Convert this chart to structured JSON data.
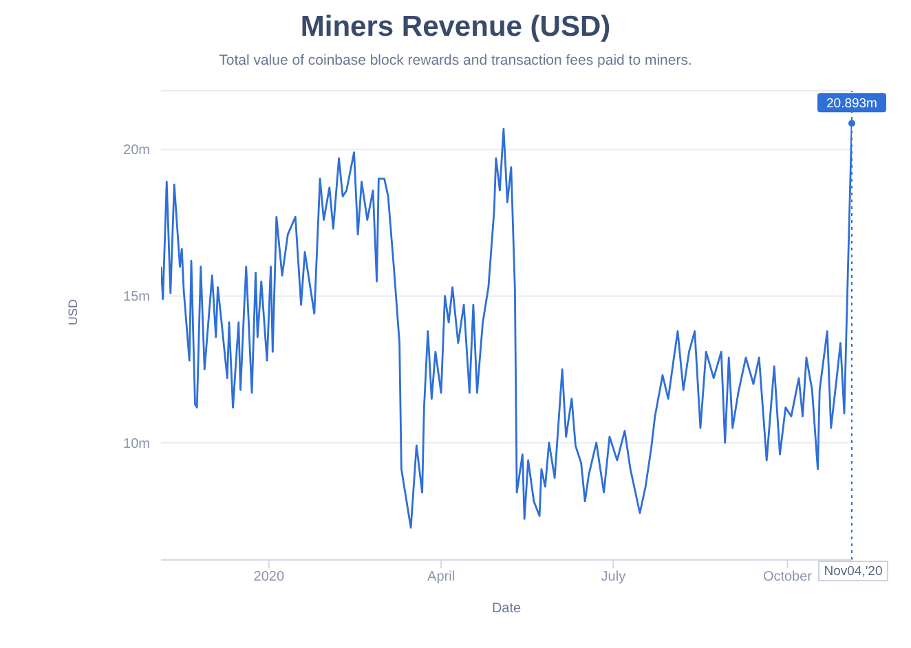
{
  "chart_data": {
    "type": "line",
    "title": "Miners Revenue (USD)",
    "subtitle": "Total value of coinbase block rewards and transaction fees paid to miners.",
    "xlabel": "Date",
    "ylabel": "USD",
    "x": [
      "2019-11-05",
      "2019-11-06",
      "2019-11-08",
      "2019-11-10",
      "2019-11-12",
      "2019-11-15",
      "2019-11-16",
      "2019-11-17",
      "2019-11-20",
      "2019-11-21",
      "2019-11-23",
      "2019-11-24",
      "2019-11-26",
      "2019-11-28",
      "2019-12-02",
      "2019-12-04",
      "2019-12-05",
      "2019-12-07",
      "2019-12-10",
      "2019-12-11",
      "2019-12-13",
      "2019-12-16",
      "2019-12-17",
      "2019-12-19",
      "2019-12-20",
      "2019-12-23",
      "2019-12-25",
      "2019-12-26",
      "2019-12-28",
      "2019-12-31",
      "2020-01-02",
      "2020-01-03",
      "2020-01-05",
      "2020-01-08",
      "2020-01-11",
      "2020-01-15",
      "2020-01-18",
      "2020-01-20",
      "2020-01-25",
      "2020-01-28",
      "2020-01-30",
      "2020-02-02",
      "2020-02-04",
      "2020-02-07",
      "2020-02-09",
      "2020-02-11",
      "2020-02-15",
      "2020-02-17",
      "2020-02-19",
      "2020-02-22",
      "2020-02-25",
      "2020-02-27",
      "2020-02-28",
      "2020-03-02",
      "2020-03-04",
      "2020-03-07",
      "2020-03-10",
      "2020-03-11",
      "2020-03-13",
      "2020-03-16",
      "2020-03-19",
      "2020-03-22",
      "2020-03-23",
      "2020-03-25",
      "2020-03-27",
      "2020-03-29",
      "2020-04-01",
      "2020-04-03",
      "2020-04-05",
      "2020-04-07",
      "2020-04-10",
      "2020-04-13",
      "2020-04-16",
      "2020-04-18",
      "2020-04-20",
      "2020-04-23",
      "2020-04-26",
      "2020-04-29",
      "2020-04-30",
      "2020-05-02",
      "2020-05-04",
      "2020-05-06",
      "2020-05-08",
      "2020-05-10",
      "2020-05-11",
      "2020-05-14",
      "2020-05-15",
      "2020-05-17",
      "2020-05-20",
      "2020-05-23",
      "2020-05-24",
      "2020-05-26",
      "2020-05-28",
      "2020-05-31",
      "2020-06-04",
      "2020-06-06",
      "2020-06-09",
      "2020-06-11",
      "2020-06-14",
      "2020-06-16",
      "2020-06-18",
      "2020-06-22",
      "2020-06-26",
      "2020-06-29",
      "2020-07-03",
      "2020-07-07",
      "2020-07-10",
      "2020-07-15",
      "2020-07-18",
      "2020-07-21",
      "2020-07-23",
      "2020-07-27",
      "2020-07-30",
      "2020-08-02",
      "2020-08-04",
      "2020-08-07",
      "2020-08-10",
      "2020-08-13",
      "2020-08-16",
      "2020-08-19",
      "2020-08-23",
      "2020-08-27",
      "2020-08-29",
      "2020-08-31",
      "2020-09-02",
      "2020-09-05",
      "2020-09-09",
      "2020-09-13",
      "2020-09-16",
      "2020-09-20",
      "2020-09-24",
      "2020-09-27",
      "2020-09-30",
      "2020-10-03",
      "2020-10-07",
      "2020-10-09",
      "2020-10-11",
      "2020-10-14",
      "2020-10-17",
      "2020-10-18",
      "2020-10-22",
      "2020-10-24",
      "2020-10-27",
      "2020-10-29",
      "2020-10-31",
      "2020-11-02",
      "2020-11-04"
    ],
    "series": [
      {
        "color": "#2f6fd6",
        "values": [
          16.0,
          14.9,
          18.9,
          15.1,
          18.8,
          16.0,
          16.6,
          15.2,
          12.8,
          16.2,
          11.3,
          11.2,
          16.0,
          12.5,
          15.7,
          13.6,
          15.3,
          14.1,
          12.2,
          14.1,
          11.2,
          14.1,
          11.8,
          14.7,
          16.0,
          11.7,
          15.8,
          13.6,
          15.5,
          12.8,
          16.0,
          13.1,
          17.7,
          15.7,
          17.1,
          17.7,
          14.7,
          16.5,
          14.4,
          19.0,
          17.6,
          18.7,
          17.3,
          19.7,
          18.4,
          18.6,
          19.9,
          17.1,
          18.9,
          17.6,
          18.6,
          15.5,
          19.0,
          19.0,
          18.4,
          16.0,
          13.4,
          9.1,
          8.3,
          7.1,
          9.9,
          8.3,
          11.2,
          13.8,
          11.5,
          13.1,
          11.7,
          15.0,
          14.1,
          15.3,
          13.4,
          14.7,
          11.7,
          14.7,
          11.7,
          14.1,
          15.3,
          17.9,
          19.7,
          18.6,
          20.7,
          18.2,
          19.4,
          15.2,
          8.3,
          9.6,
          7.4,
          9.4,
          8.0,
          7.5,
          9.1,
          8.5,
          10.0,
          8.8,
          12.5,
          10.2,
          11.5,
          9.9,
          9.3,
          8.0,
          8.9,
          10.0,
          8.3,
          10.2,
          9.4,
          10.4,
          9.1,
          7.6,
          8.5,
          9.8,
          10.9,
          12.3,
          11.5,
          12.9,
          13.8,
          11.8,
          13.1,
          13.8,
          10.5,
          13.1,
          12.2,
          13.1,
          10.0,
          12.9,
          10.5,
          11.7,
          12.9,
          12.0,
          12.9,
          9.4,
          12.6,
          9.6,
          11.2,
          10.9,
          12.2,
          10.9,
          12.9,
          11.8,
          9.1,
          11.8,
          13.8,
          10.5,
          12.2,
          13.4,
          11.0,
          16.0,
          20.893
        ]
      }
    ],
    "xlim": [
      "2019-11-05",
      "2020-11-04"
    ],
    "xticks": [
      {
        "value": "2020-01-01",
        "label": "2020"
      },
      {
        "value": "2020-04-01",
        "label": "April"
      },
      {
        "value": "2020-07-01",
        "label": "July"
      },
      {
        "value": "2020-10-01",
        "label": "October"
      }
    ],
    "ylim": [
      6,
      22
    ],
    "yticks": [
      {
        "value": 10,
        "label": "10m"
      },
      {
        "value": 15,
        "label": "15m"
      },
      {
        "value": 20,
        "label": "20m"
      }
    ],
    "grid": "y",
    "marker": "none",
    "line_style": "solid",
    "ref_lines": [
      {
        "axis": "x",
        "value": "2020-11-04",
        "label": "Nov04,'20",
        "line_style": "dotted",
        "color": "#2f6fd6"
      }
    ],
    "annotations": [
      {
        "text": "20.893m",
        "x": "2020-11-04",
        "y": 20.893
      }
    ]
  }
}
